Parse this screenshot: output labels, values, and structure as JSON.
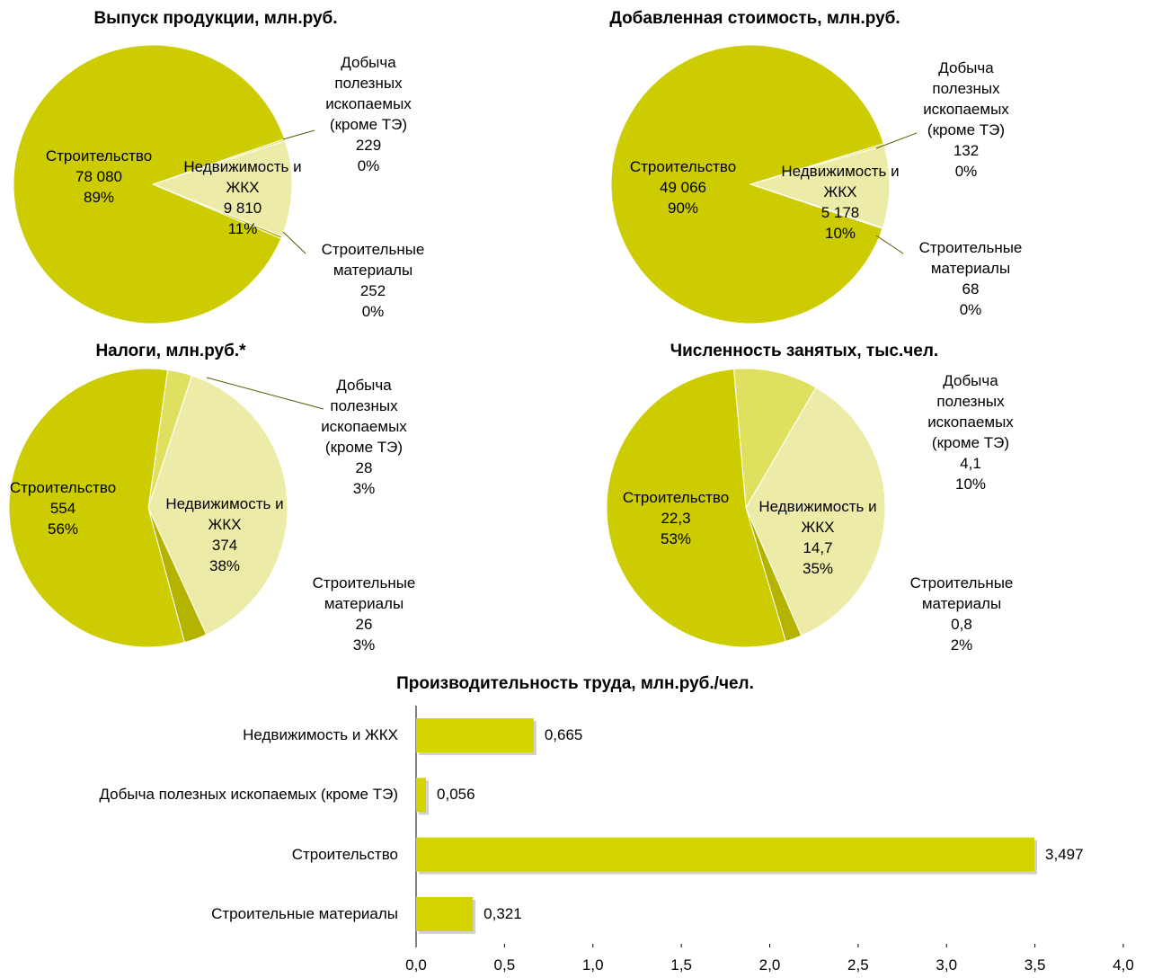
{
  "chart_data": [
    {
      "type": "pie",
      "title": "Выпуск продукции, млн.руб.",
      "categories": [
        "Добыча полезных ископаемых (кроме ТЭ)",
        "Недвижимость и ЖКХ",
        "Строительные материалы",
        "Строительство"
      ],
      "values": [
        229,
        9810,
        252,
        78080
      ],
      "value_labels": [
        "229",
        "9 810",
        "252",
        "78 080"
      ],
      "percent_labels": [
        "0%",
        "11%",
        "0%",
        "89%"
      ],
      "colors": [
        "#e0e060",
        "#ececa8",
        "#b3b300",
        "#cccc00"
      ]
    },
    {
      "type": "pie",
      "title": "Добавленная стоимость, млн.руб.",
      "categories": [
        "Добыча полезных ископаемых (кроме ТЭ)",
        "Недвижимость и ЖКХ",
        "Строительные материалы",
        "Строительство"
      ],
      "values": [
        132,
        5178,
        68,
        49066
      ],
      "value_labels": [
        "132",
        "5 178",
        "68",
        "49 066"
      ],
      "percent_labels": [
        "0%",
        "10%",
        "0%",
        "90%"
      ],
      "colors": [
        "#e0e060",
        "#ececa8",
        "#b3b300",
        "#cccc00"
      ]
    },
    {
      "type": "pie",
      "title": "Налоги, млн.руб.*",
      "categories": [
        "Добыча полезных ископаемых (кроме ТЭ)",
        "Недвижимость и ЖКХ",
        "Строительные материалы",
        "Строительство"
      ],
      "values": [
        28,
        374,
        26,
        554
      ],
      "value_labels": [
        "28",
        "374",
        "26",
        "554"
      ],
      "percent_labels": [
        "3%",
        "38%",
        "3%",
        "56%"
      ],
      "colors": [
        "#e0e060",
        "#ececa8",
        "#b3b300",
        "#cccc00"
      ]
    },
    {
      "type": "pie",
      "title": "Численность занятых, тыс.чел.",
      "categories": [
        "Добыча полезных ископаемых (кроме ТЭ)",
        "Недвижимость и ЖКХ",
        "Строительные материалы",
        "Строительство"
      ],
      "values": [
        4.1,
        14.7,
        0.8,
        22.3
      ],
      "value_labels": [
        "4,1",
        "14,7",
        "0,8",
        "22,3"
      ],
      "percent_labels": [
        "10%",
        "35%",
        "2%",
        "53%"
      ],
      "colors": [
        "#e0e060",
        "#ececa8",
        "#b3b300",
        "#cccc00"
      ]
    },
    {
      "type": "bar",
      "orientation": "horizontal",
      "title": "Производительность труда, млн.руб./чел.",
      "categories": [
        "Недвижимость и ЖКХ",
        "Добыча полезных ископаемых (кроме ТЭ)",
        "Строительство",
        "Строительные материалы"
      ],
      "values": [
        0.665,
        0.056,
        3.497,
        0.321
      ],
      "value_labels": [
        "0,665",
        "0,056",
        "3,497",
        "0,321"
      ],
      "color": "#d4d400",
      "xlim": [
        0,
        4
      ],
      "xticks": [
        {
          "value": 0,
          "label": "0,0"
        },
        {
          "value": 0.5,
          "label": "0,5"
        },
        {
          "value": 1,
          "label": "1,0"
        },
        {
          "value": 1.5,
          "label": "1,5"
        },
        {
          "value": 2,
          "label": "2,0"
        },
        {
          "value": 2.5,
          "label": "2,5"
        },
        {
          "value": 3,
          "label": "3,0"
        },
        {
          "value": 3.5,
          "label": "3,5"
        },
        {
          "value": 4,
          "label": "4,0"
        }
      ]
    }
  ]
}
